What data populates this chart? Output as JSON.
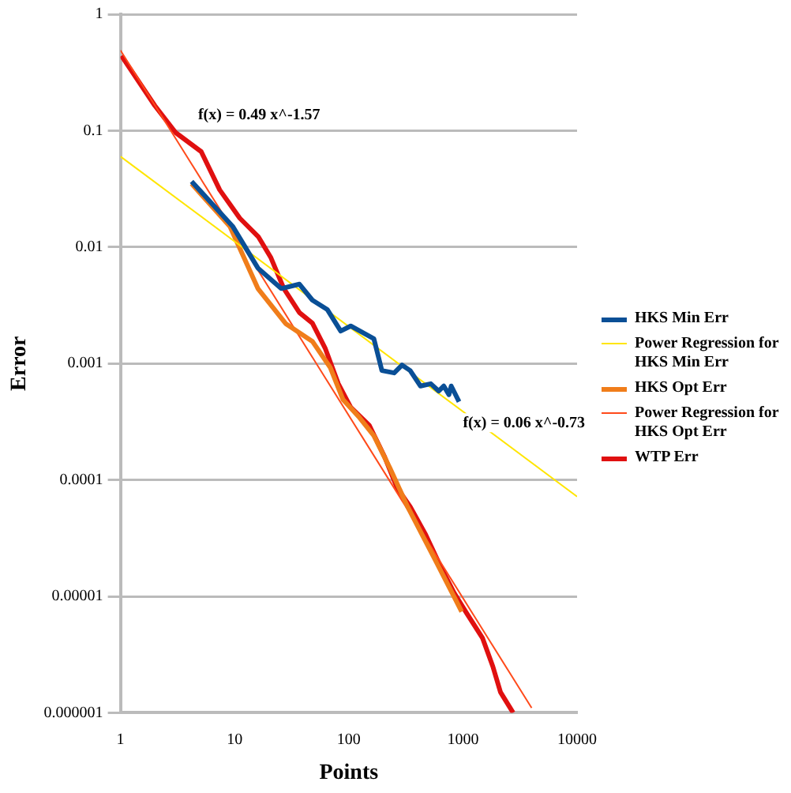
{
  "chart_data": {
    "type": "line",
    "xlabel": "Points",
    "ylabel": "Error",
    "log": "xy",
    "grid": "y",
    "legend": "right",
    "marker": "none",
    "xlim": [
      1,
      10000
    ],
    "xticks": [
      1,
      10,
      100,
      1000,
      10000
    ],
    "ylim": [
      1e-06,
      1
    ],
    "yticks": [
      {
        "value": 1e-06,
        "label": "0.000001"
      },
      {
        "value": 1e-05,
        "label": "0.00001"
      },
      0.0001,
      0.001,
      0.01,
      0.1,
      1
    ],
    "series": [
      {
        "name": "HKS Min Err",
        "color": "#0a4f96",
        "x": [
          4.2,
          9.6,
          16,
          25.6,
          37,
          48,
          65,
          85,
          104,
          166,
          195,
          250,
          293,
          345,
          425,
          523,
          613,
          680,
          754,
          790,
          925
        ],
        "values": [
          0.0366,
          0.0151,
          0.0066,
          0.0044,
          0.0048,
          0.0035,
          0.0029,
          0.0019,
          0.0021,
          0.00163,
          0.00087,
          0.00083,
          0.00097,
          0.00087,
          0.00064,
          0.00067,
          0.00058,
          0.00064,
          0.00054,
          0.00064,
          0.00047
        ]
      },
      {
        "name": "Power Regression for HKS Min Err",
        "color": "#ffe500",
        "x": [
          1,
          10000
        ],
        "values": [
          0.06,
          7.2e-05
        ]
      },
      {
        "name": "HKS Opt Err",
        "color": "#f07d1a",
        "x": [
          4.2,
          9.1,
          16,
          28,
          48,
          69,
          89,
          122,
          166,
          228,
          330,
          580,
          975
        ],
        "values": [
          0.035,
          0.015,
          0.0044,
          0.0022,
          0.00155,
          0.00092,
          0.00049,
          0.00035,
          0.00024,
          0.000128,
          5.8e-05,
          2e-05,
          7.4e-06
        ]
      },
      {
        "name": "Power Regression for HKS Opt Err",
        "color": "#ff4a1a",
        "x": [
          1,
          4000
        ],
        "values": [
          0.49,
          1.1e-06
        ]
      },
      {
        "name": "WTP Err",
        "color": "#e01010",
        "x": [
          1.02,
          2,
          3.05,
          5.1,
          7.4,
          11.1,
          16.1,
          20.8,
          27,
          37,
          48,
          62,
          81,
          104,
          151,
          206,
          266,
          345,
          471,
          638,
          837,
          1084,
          1482,
          1828,
          2134,
          2754
        ],
        "values": [
          0.44,
          0.164,
          0.096,
          0.066,
          0.031,
          0.0177,
          0.0123,
          0.0081,
          0.0044,
          0.00273,
          0.00222,
          0.00136,
          0.00067,
          0.00042,
          0.000295,
          0.000158,
          8.5e-05,
          5.9e-05,
          3.4e-05,
          1.8e-05,
          1.07e-05,
          7.1e-06,
          4.4e-06,
          2.5e-06,
          1.5e-06,
          1e-06
        ]
      }
    ],
    "annotations": [
      "f(x) = 0.49 x^-1.57",
      "f(x) = 0.06 x^-0.73"
    ]
  }
}
